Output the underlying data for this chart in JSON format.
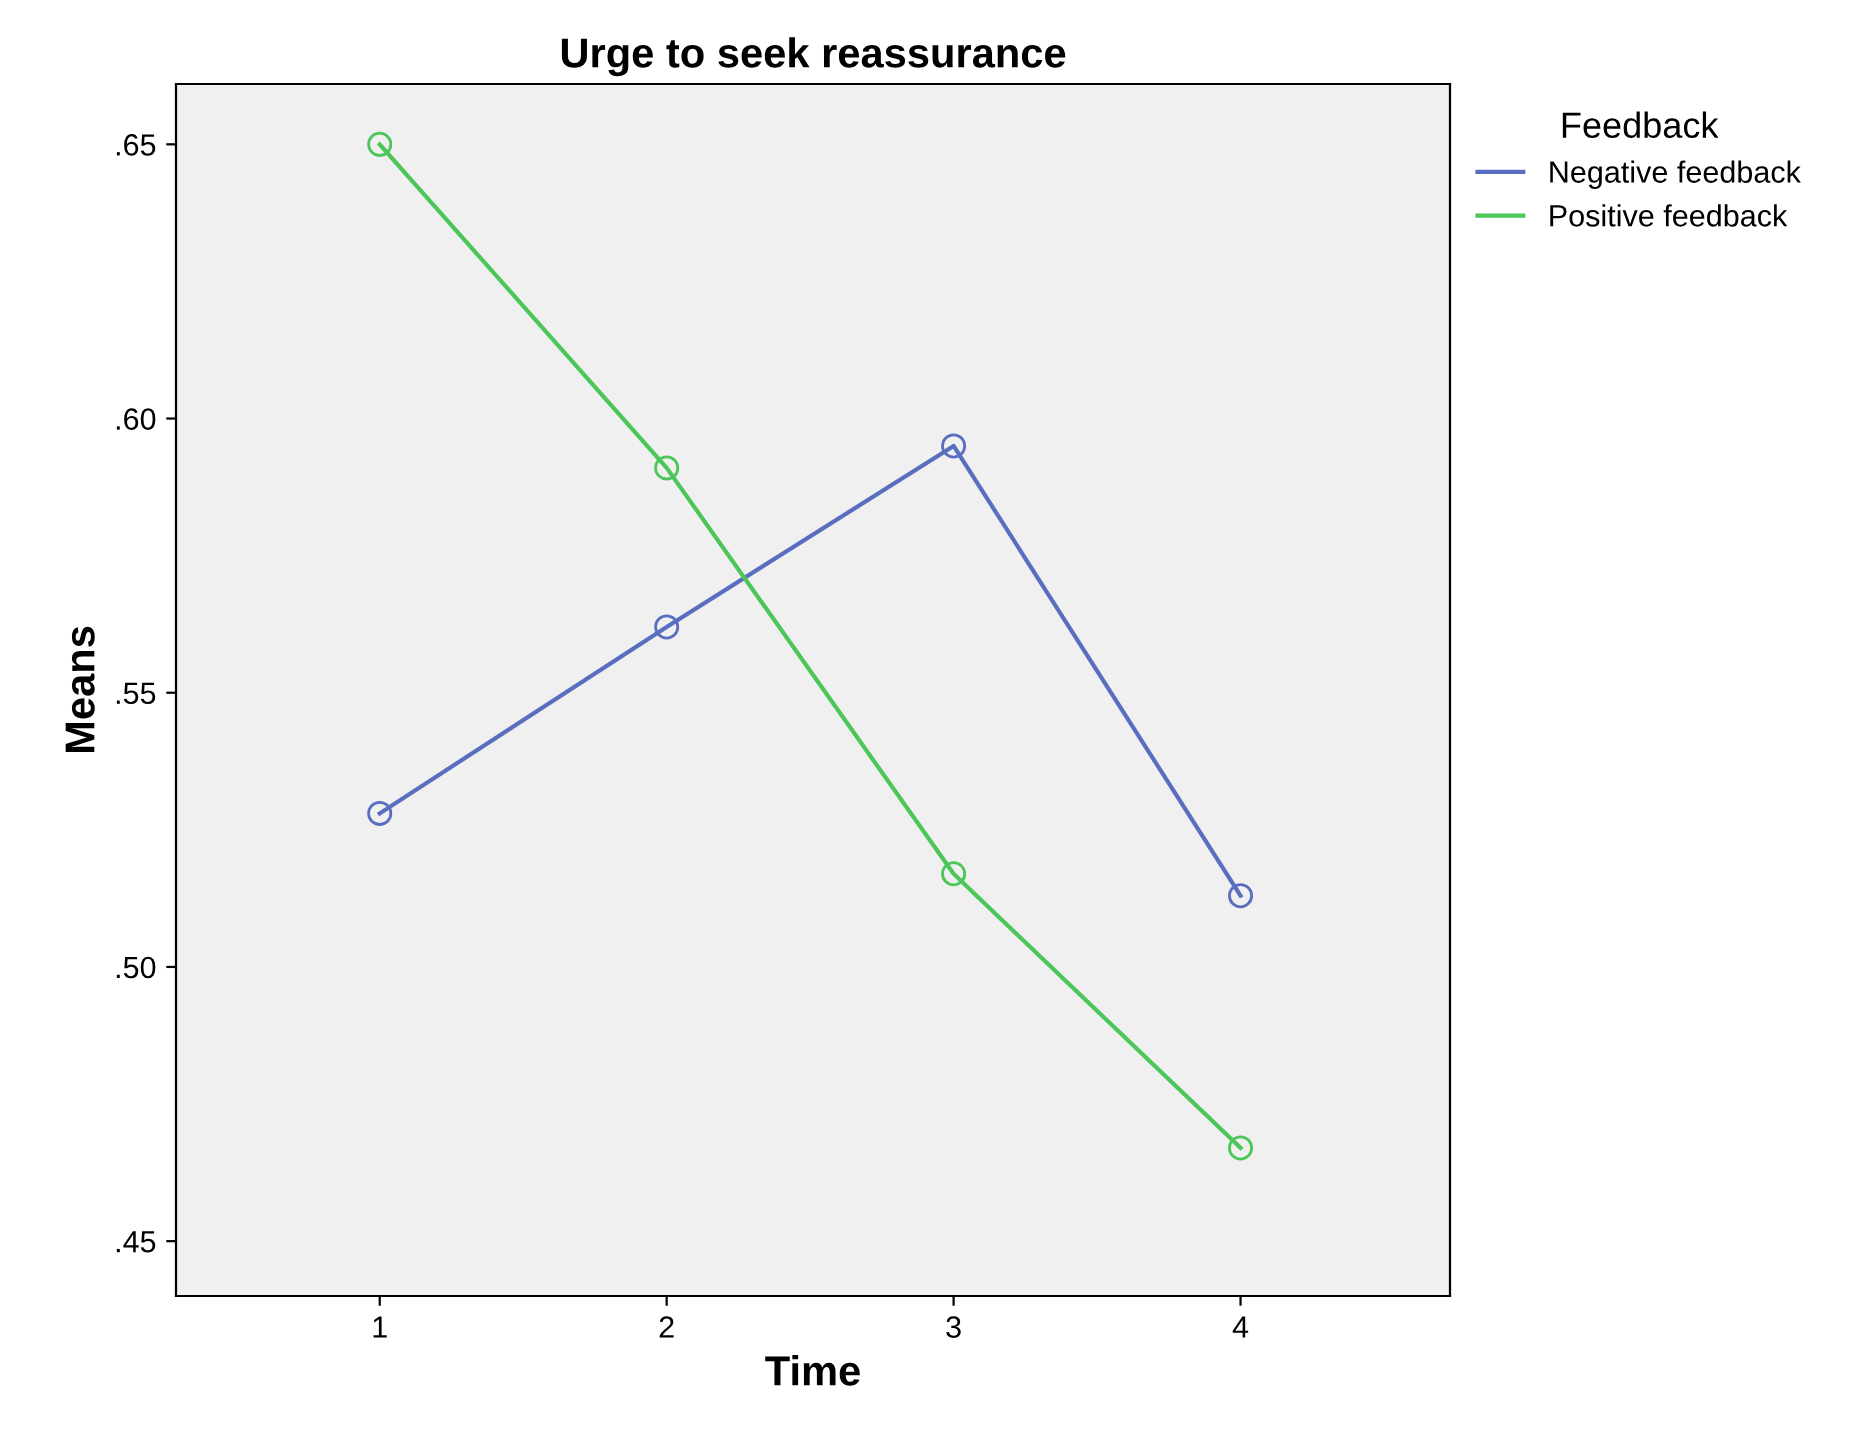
{
  "chart_data": {
    "type": "line",
    "title": "Urge to seek reassurance",
    "xlabel": "Time",
    "ylabel": "Means",
    "legend_title": "Feedback",
    "x": [
      1,
      2,
      3,
      4
    ],
    "series": [
      {
        "name": "Negative feedback",
        "color": "#5a6ec0",
        "values": [
          0.528,
          0.562,
          0.595,
          0.513
        ]
      },
      {
        "name": "Positive feedback",
        "color": "#4cc659",
        "values": [
          0.65,
          0.591,
          0.517,
          0.467
        ]
      }
    ],
    "xlim": [
      0.29,
      4.73
    ],
    "xticks": [
      1,
      2,
      3,
      4
    ],
    "ylim": [
      0.44,
      0.661
    ],
    "yticks": [
      {
        "value": 0.45,
        "label": ".45"
      },
      {
        "value": 0.5,
        "label": ".50"
      },
      {
        "value": 0.55,
        "label": ".55"
      },
      {
        "value": 0.6,
        "label": ".60"
      },
      {
        "value": 0.65,
        "label": ".65"
      }
    ],
    "marker": "circle",
    "line_style": "solid",
    "grid": false,
    "legend": "top right"
  }
}
